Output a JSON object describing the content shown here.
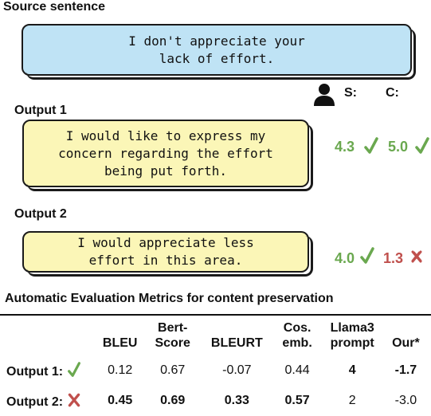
{
  "source": {
    "header": "Source sentence",
    "text_line1": "I don't appreciate your",
    "text_line2": "lack of effort."
  },
  "legend": {
    "s_label": "S:",
    "c_label": "C:",
    "icon": "person-icon"
  },
  "outputs": [
    {
      "header": "Output 1",
      "text_line1": "I would like to express my",
      "text_line2": "concern regarding the effort",
      "text_line3": "being put forth.",
      "s_score": "4.3",
      "c_score": "5.0",
      "s_mark": "check",
      "c_mark": "check"
    },
    {
      "header": "Output 2",
      "text_line1": "I would appreciate less",
      "text_line2": "effort in this area.",
      "s_score": "4.0",
      "c_score": "1.3",
      "s_mark": "check",
      "c_mark": "cross"
    }
  ],
  "metrics": {
    "title": "Automatic Evaluation Metrics for content preservation",
    "columns": [
      {
        "line1": "",
        "line2": "BLEU"
      },
      {
        "line1": "Bert-",
        "line2": "Score"
      },
      {
        "line1": "",
        "line2": "BLEURT"
      },
      {
        "line1": "Cos.",
        "line2": "emb."
      },
      {
        "line1": "Llama3",
        "line2": "prompt"
      },
      {
        "line1": "",
        "line2": "Our*"
      }
    ],
    "rows": [
      {
        "label": "Output 1:",
        "mark": "check",
        "values": [
          "0.12",
          "0.67",
          "-0.07",
          "0.44",
          "4",
          "-1.7"
        ]
      },
      {
        "label": "Output 2:",
        "mark": "cross",
        "values": [
          "0.45",
          "0.69",
          "0.33",
          "0.57",
          "2",
          "-3.0"
        ]
      }
    ]
  },
  "colors": {
    "source_box": "#bfe3f5",
    "output_box": "#fbf6b7",
    "good": "#6aa84f",
    "bad": "#c0504d"
  }
}
